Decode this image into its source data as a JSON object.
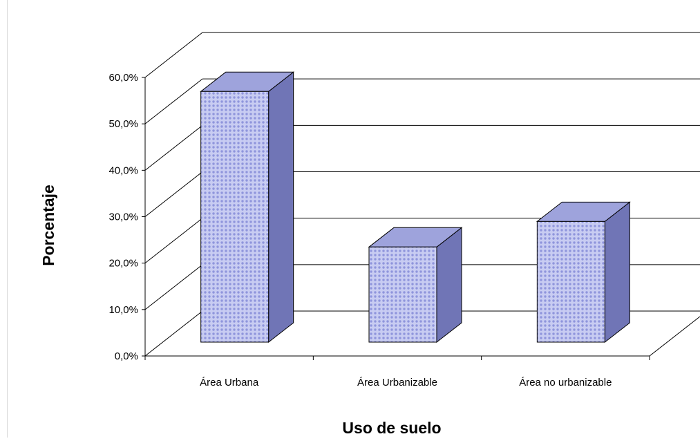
{
  "chart_data": {
    "type": "bar",
    "style": "3d-column",
    "categories": [
      "Área Urbana",
      "Área Urbanizable",
      "Área no urbanizable"
    ],
    "series": [
      {
        "values": [
          0.54,
          0.205,
          0.26
        ]
      }
    ],
    "ylim": [
      0,
      0.6
    ],
    "yticks": [
      "0,0%",
      "10,0%",
      "20,0%",
      "30,0%",
      "40,0%",
      "50,0%",
      "60,0%"
    ],
    "xlabel": "Uso de suelo",
    "ylabel": "Porcentaje",
    "grid": true,
    "legend": "none",
    "colors": {
      "bar_front": "#c8ccf2",
      "bar_pattern": "#8f95dc",
      "bar_top": "#9ea3dc",
      "bar_side": "#7075b6",
      "outline": "#000000"
    }
  }
}
